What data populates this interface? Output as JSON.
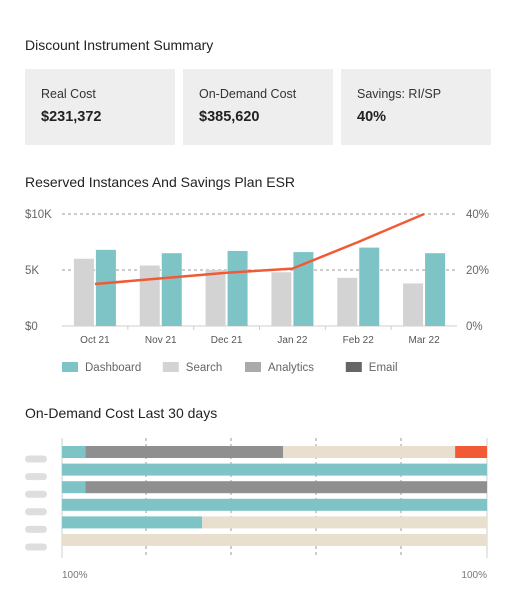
{
  "summary": {
    "title": "Discount Instrument Summary",
    "cards": [
      {
        "label": "Real Cost",
        "value": "$231,372"
      },
      {
        "label": "On-Demand Cost",
        "value": "$385,620"
      },
      {
        "label": "Savings: RI/SP",
        "value": "40%"
      }
    ]
  },
  "chart_data": [
    {
      "type": "bar",
      "title": "Reserved Instances And Savings Plan ESR",
      "categories": [
        "Oct 21",
        "Nov 21",
        "Dec 21",
        "Jan 22",
        "Feb 22",
        "Mar 22"
      ],
      "y_left": {
        "ticks": [
          "$0",
          "5K",
          "$10K"
        ],
        "range": [
          0,
          10000
        ]
      },
      "y_right": {
        "ticks": [
          "0%",
          "20%",
          "40%"
        ],
        "range": [
          0,
          40
        ]
      },
      "series": [
        {
          "name": "Search",
          "type": "bar",
          "color": "#d3d3d3",
          "values": [
            6000,
            5400,
            5000,
            4800,
            4300,
            3800
          ]
        },
        {
          "name": "Dashboard",
          "type": "bar",
          "color": "#7ec4c6",
          "values": [
            6800,
            6500,
            6700,
            6600,
            7000,
            6500
          ]
        },
        {
          "type": "line",
          "axis": "right",
          "color": "#f25a36",
          "values": [
            15,
            17,
            19,
            20.5,
            30,
            40
          ]
        }
      ],
      "legend": {
        "position": "bottom-left",
        "items": [
          {
            "name": "Dashboard",
            "color": "#7ec4c6"
          },
          {
            "name": "Search",
            "color": "#d3d3d3"
          },
          {
            "name": "Analytics",
            "color": "#aaaaaa"
          },
          {
            "name": "Email",
            "color": "#666666"
          }
        ]
      },
      "grid": "dashed-horizontal"
    },
    {
      "type": "bar",
      "orientation": "horizontal-stacked",
      "title": "On-Demand Cost Last 30 days",
      "x_tick_labels": [
        "100%",
        "100%"
      ],
      "rows": [
        {
          "segments": [
            {
              "color": "#7ec4c6",
              "value": 0.055
            },
            {
              "color": "#8f8f8f",
              "value": 0.465
            },
            {
              "color": "#e8dfcf",
              "value": 0.405
            },
            {
              "color": "#f25a36",
              "value": 0.075
            }
          ]
        },
        {
          "segments": [
            {
              "color": "#7ec4c6",
              "value": 1.0
            }
          ]
        },
        {
          "segments": [
            {
              "color": "#7ec4c6",
              "value": 0.055
            },
            {
              "color": "#8f8f8f",
              "value": 0.945
            }
          ]
        },
        {
          "segments": [
            {
              "color": "#7ec4c6",
              "value": 1.0
            }
          ]
        },
        {
          "segments": [
            {
              "color": "#7ec4c6",
              "value": 0.33
            },
            {
              "color": "#e8dfcf",
              "value": 0.67
            }
          ]
        },
        {
          "segments": [
            {
              "color": "#e8dfcf",
              "value": 1.0
            }
          ]
        }
      ]
    }
  ]
}
